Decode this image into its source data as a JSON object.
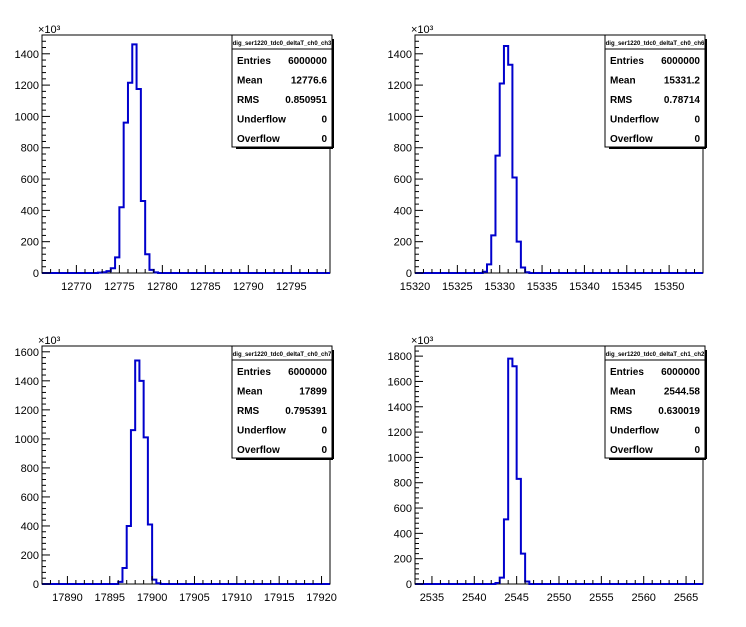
{
  "chart_data": [
    {
      "type": "histogram",
      "title": "dig_ser1220_tdc0_deltaT_ch0_ch3",
      "exponent_label": "×10³",
      "stats": [
        {
          "label": "Entries",
          "value": "6000000"
        },
        {
          "label": "Mean",
          "value": "12776.6"
        },
        {
          "label": "RMS",
          "value": "0.850951"
        },
        {
          "label": "Underflow",
          "value": "0"
        },
        {
          "label": "Overflow",
          "value": "0"
        }
      ],
      "xlim": [
        12766,
        12799.5
      ],
      "ylim": [
        0,
        1520
      ],
      "xticks": [
        12770,
        12775,
        12780,
        12785,
        12790,
        12795
      ],
      "yticks": [
        0,
        200,
        400,
        600,
        800,
        1000,
        1200,
        1400
      ],
      "ytick_labels": [
        "0",
        "200",
        "400",
        "600",
        "800",
        "1000",
        "1200",
        "1400"
      ],
      "bin_width": 0.5,
      "bins": [
        [
          12772.5,
          2
        ],
        [
          12773,
          5
        ],
        [
          12773.5,
          12
        ],
        [
          12774,
          30
        ],
        [
          12774.5,
          100
        ],
        [
          12775,
          420
        ],
        [
          12775.5,
          960
        ],
        [
          12776,
          1215
        ],
        [
          12776.5,
          1460
        ],
        [
          12777,
          1175
        ],
        [
          12777.5,
          460
        ],
        [
          12778,
          120
        ],
        [
          12778.5,
          20
        ],
        [
          12779,
          4
        ]
      ]
    },
    {
      "type": "histogram",
      "title": "dig_ser1220_tdc0_deltaT_ch0_ch6",
      "exponent_label": "×10³",
      "stats": [
        {
          "label": "Entries",
          "value": "6000000"
        },
        {
          "label": "Mean",
          "value": "15331.2"
        },
        {
          "label": "RMS",
          "value": "0.78714"
        },
        {
          "label": "Underflow",
          "value": "0"
        },
        {
          "label": "Overflow",
          "value": "0"
        }
      ],
      "xlim": [
        15320,
        15354
      ],
      "ylim": [
        0,
        1520
      ],
      "xticks": [
        15320,
        15325,
        15330,
        15335,
        15340,
        15345,
        15350
      ],
      "yticks": [
        0,
        200,
        400,
        600,
        800,
        1000,
        1200,
        1400
      ],
      "ytick_labels": [
        "0",
        "200",
        "400",
        "600",
        "800",
        "1000",
        "1200",
        "1400"
      ],
      "bin_width": 0.5,
      "bins": [
        [
          15328,
          8
        ],
        [
          15328.5,
          55
        ],
        [
          15329,
          240
        ],
        [
          15329.5,
          750
        ],
        [
          15330,
          1210
        ],
        [
          15330.5,
          1450
        ],
        [
          15331,
          1330
        ],
        [
          15331.5,
          610
        ],
        [
          15332,
          200
        ],
        [
          15332.5,
          35
        ],
        [
          15333,
          5
        ]
      ]
    },
    {
      "type": "histogram",
      "title": "dig_ser1220_tdc0_deltaT_ch0_ch7",
      "exponent_label": "×10³",
      "stats": [
        {
          "label": "Entries",
          "value": "6000000"
        },
        {
          "label": "Mean",
          "value": "17899"
        },
        {
          "label": "RMS",
          "value": "0.795391"
        },
        {
          "label": "Underflow",
          "value": "0"
        },
        {
          "label": "Overflow",
          "value": "0"
        }
      ],
      "xlim": [
        17887,
        17921
      ],
      "ylim": [
        0,
        1640
      ],
      "xticks": [
        17890,
        17895,
        17900,
        17905,
        17910,
        17915,
        17920
      ],
      "yticks": [
        0,
        200,
        400,
        600,
        800,
        1000,
        1200,
        1400,
        1600
      ],
      "ytick_labels": [
        "0",
        "200",
        "400",
        "600",
        "800",
        "1000",
        "1200",
        "1400",
        "1600"
      ],
      "bin_width": 0.5,
      "bins": [
        [
          17896,
          15
        ],
        [
          17896.5,
          110
        ],
        [
          17897,
          400
        ],
        [
          17897.5,
          1060
        ],
        [
          17898,
          1540
        ],
        [
          17898.5,
          1400
        ],
        [
          17899,
          1010
        ],
        [
          17899.5,
          410
        ],
        [
          17900,
          30
        ],
        [
          17900.5,
          5
        ]
      ]
    },
    {
      "type": "histogram",
      "title": "dig_ser1220_tdc0_deltaT_ch1_ch2",
      "exponent_label": "×10³",
      "stats": [
        {
          "label": "Entries",
          "value": "6000000"
        },
        {
          "label": "Mean",
          "value": "2544.58"
        },
        {
          "label": "RMS",
          "value": "0.630019"
        },
        {
          "label": "Underflow",
          "value": "0"
        },
        {
          "label": "Overflow",
          "value": "0"
        }
      ],
      "xlim": [
        2533,
        2567
      ],
      "ylim": [
        0,
        1880
      ],
      "xticks": [
        2535,
        2540,
        2545,
        2550,
        2555,
        2560,
        2565
      ],
      "yticks": [
        0,
        200,
        400,
        600,
        800,
        1000,
        1200,
        1400,
        1600,
        1800
      ],
      "ytick_labels": [
        "0",
        "200",
        "400",
        "600",
        "800",
        "1000",
        "1200",
        "1400",
        "1600",
        "1800"
      ],
      "bin_width": 0.5,
      "bins": [
        [
          2542.5,
          8
        ],
        [
          2543,
          50
        ],
        [
          2543.5,
          510
        ],
        [
          2544,
          1780
        ],
        [
          2544.5,
          1720
        ],
        [
          2545,
          830
        ],
        [
          2545.5,
          240
        ],
        [
          2546,
          20
        ]
      ]
    }
  ]
}
